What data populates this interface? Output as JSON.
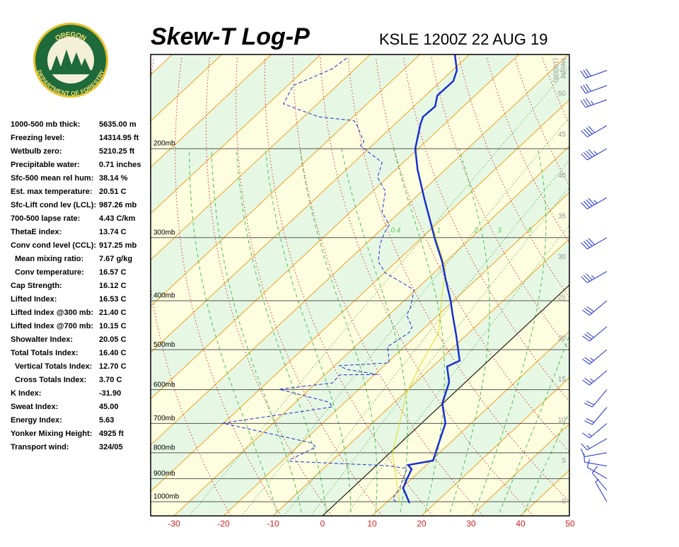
{
  "header": {
    "title": "Skew-T Log-P",
    "subtitle": "KSLE 1200Z 22 AUG 19",
    "logo": {
      "top": "OREGON",
      "bottom": "DEPARTMENT OF FORESTRY"
    }
  },
  "indices": [
    {
      "label": "1000-500 mb thick:",
      "value": "5635.00 m"
    },
    {
      "label": "Freezing level:",
      "value": "14314.95 ft"
    },
    {
      "label": "Wetbulb zero:",
      "value": "5210.25 ft"
    },
    {
      "label": "Precipitable water:",
      "value": "0.71 inches"
    },
    {
      "label": "Sfc-500 mean rel hum:",
      "value": "38.14 %"
    },
    {
      "label": "Est. max temperature:",
      "value": "20.51 C"
    },
    {
      "label": "Sfc-Lift cond lev (LCL):",
      "value": "987.26 mb"
    },
    {
      "label": "700-500 lapse rate:",
      "value": "4.43 C/km"
    },
    {
      "label": "ThetaE index:",
      "value": "13.74 C"
    },
    {
      "label": "Conv cond level (CCL):",
      "value": "917.25 mb",
      "items": [
        {
          "label": "Mean mixing ratio:",
          "value": "7.67 g/kg"
        },
        {
          "label": "Conv temperature:",
          "value": "16.57 C"
        }
      ]
    },
    {
      "label": "Cap Strength:",
      "value": "16.12 C"
    },
    {
      "label": "Lifted Index:",
      "value": "16.53 C"
    },
    {
      "label": "Lifted Index @300 mb:",
      "value": "21.40 C"
    },
    {
      "label": "Lifted Index @700 mb:",
      "value": "10.15 C"
    },
    {
      "label": "Showalter Index:",
      "value": "20.05 C"
    },
    {
      "label": "Total Totals Index:",
      "value": "16.40 C",
      "items": [
        {
          "label": "Vertical Totals Index:",
          "value": "12.70 C"
        },
        {
          "label": "Cross Totals Index:",
          "value": "3.70 C"
        }
      ]
    },
    {
      "label": "K Index:",
      "value": "-31.90"
    },
    {
      "label": "Sweat Index:",
      "value": "45.00"
    },
    {
      "label": "Energy Index:",
      "value": "5.63"
    },
    {
      "label": "Yonker Mixing Height:",
      "value": "4925 ft"
    },
    {
      "label": "Transport wind:",
      "value": "324/05"
    }
  ],
  "plot": {
    "pressure_levels": [
      {
        "value": 1000,
        "label": "1000mb"
      },
      {
        "value": 900,
        "label": "900mb"
      },
      {
        "value": 800,
        "label": "800mb"
      },
      {
        "value": 700,
        "label": "700mb"
      },
      {
        "value": 600,
        "label": "600mb"
      },
      {
        "value": 500,
        "label": "500mb"
      },
      {
        "value": 400,
        "label": "400mb"
      },
      {
        "value": 300,
        "label": "300mb"
      },
      {
        "value": 200,
        "label": "200mb"
      }
    ],
    "temperature_ticks": [
      -30,
      -20,
      -10,
      0,
      10,
      20,
      30,
      40,
      50
    ],
    "height_label": [
      "Height",
      "(1000ft)"
    ],
    "height_ticks": [
      0,
      5,
      10,
      15,
      20,
      25,
      30,
      35,
      40,
      45,
      50
    ],
    "mixing_ratio_labels": [
      0.4,
      1,
      2,
      3,
      5
    ],
    "temperature": {
      "p": [
        1006,
        940,
        902,
        862,
        846,
        829,
        790,
        699,
        639,
        580,
        540,
        526,
        470,
        427,
        400,
        363,
        335,
        304,
        251,
        220,
        200,
        179,
        173,
        165,
        157,
        147,
        140,
        130
      ],
      "t": [
        14.8,
        10.3,
        9.1,
        7.9,
        6.3,
        10.4,
        8.8,
        4.8,
        -0.1,
        -3.3,
        -7.1,
        -5.8,
        -11.8,
        -17.1,
        -20.6,
        -26.2,
        -30.7,
        -36.7,
        -48.0,
        -55.6,
        -60.6,
        -64.8,
        -65.9,
        -65.7,
        -67.6,
        -67.5,
        -69.1,
        -73.0
      ]
    },
    "dewpoint": {
      "p": [
        1000,
        987,
        940,
        859,
        848,
        832,
        827,
        780,
        765,
        699,
        649,
        635,
        599,
        582,
        561,
        560,
        547,
        538,
        531,
        493,
        463,
        451,
        427,
        413,
        381,
        373,
        352,
        335,
        309,
        294,
        283,
        267,
        243,
        228,
        213,
        203,
        197,
        194,
        179,
        176,
        173,
        163,
        150,
        139,
        132
      ],
      "t": [
        11.8,
        10.5,
        9.6,
        6.8,
        1.9,
        -18.2,
        -18.8,
        -16.2,
        -17.9,
        -40.2,
        -21.5,
        -23.3,
        -36.1,
        -26.7,
        -27.0,
        -19.3,
        -26.8,
        -29.0,
        -19.6,
        -23.4,
        -22.1,
        -22.7,
        -26.4,
        -27.2,
        -30.3,
        -32.8,
        -39.9,
        -43.6,
        -47.1,
        -48.6,
        -49.4,
        -53.6,
        -57.4,
        -62.0,
        -64.3,
        -69.4,
        -72.4,
        -72.4,
        -77.7,
        -79.1,
        -87.0,
        -96.9,
        -98.9,
        -94.6,
        -94.0
      ]
    },
    "parcel": {
      "p": [
        1000,
        800,
        608,
        535,
        463,
        394,
        346,
        267
      ],
      "t": [
        12.5,
        0.5,
        -9.6,
        -12.9,
        -16.1,
        -23.1,
        -28.5,
        -44.3
      ]
    },
    "wind": {
      "p": [
        1000,
        950,
        900,
        850,
        800,
        750,
        700,
        650,
        600,
        550,
        500,
        450,
        400,
        350,
        300,
        250,
        200,
        180,
        160,
        150,
        140
      ],
      "dir": [
        330,
        320,
        300,
        280,
        260,
        240,
        230,
        220,
        220,
        230,
        230,
        230,
        230,
        240,
        240,
        240,
        240,
        240,
        250,
        250,
        250
      ],
      "speed": [
        5,
        10,
        10,
        10,
        10,
        15,
        15,
        20,
        20,
        25,
        25,
        30,
        30,
        35,
        40,
        45,
        45,
        40,
        35,
        30,
        30
      ]
    }
  }
}
